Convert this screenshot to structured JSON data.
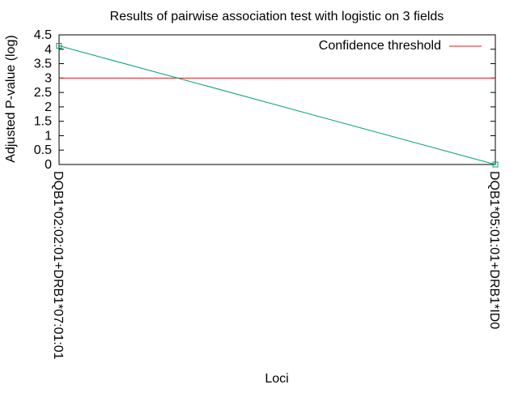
{
  "chart_data": {
    "type": "line",
    "title": "Results of pairwise association test with logistic on 3 fields",
    "xlabel": "Loci",
    "ylabel": "Adjusted P-value (log)",
    "categories": [
      "DQB1*02:02:01+DRB1*07:01:01",
      "DQB1*05:01:01+DRB1*ID0"
    ],
    "series": [
      {
        "values": [
          4.12,
          0.0
        ],
        "color": "#009e73",
        "marker": "square"
      }
    ],
    "threshold": {
      "name": "Confidence threshold",
      "value": 3.0,
      "color": "#e41a1c"
    },
    "ylim": [
      0,
      4.5
    ],
    "yticks": [
      "0",
      "0.5",
      "1",
      "1.5",
      "2",
      "2.5",
      "3",
      "3.5",
      "4",
      "4.5"
    ],
    "grid": false,
    "legend": "top-right"
  }
}
